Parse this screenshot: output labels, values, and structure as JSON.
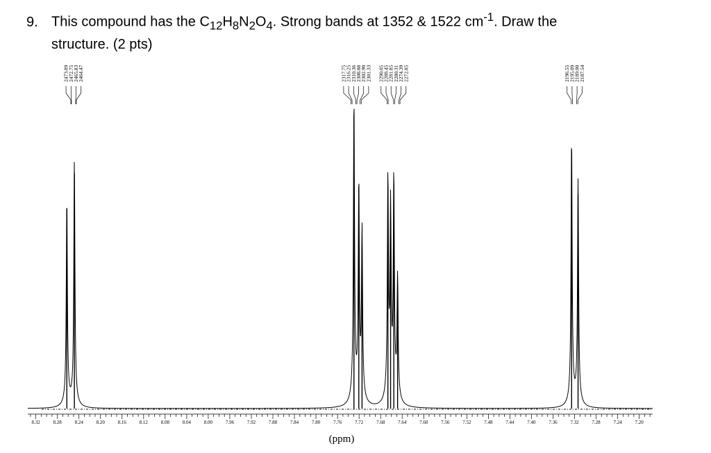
{
  "question": {
    "number": "9.",
    "text_part1": "This compound has the C",
    "c_sub": "12",
    "h_text": "H",
    "h_sub": "8",
    "n_text": "N",
    "n_sub": "2",
    "o_text": "O",
    "o_sub": "4",
    "text_part2": ". Strong bands at 1352 & 1522 cm",
    "unit_sup": "-1",
    "text_part3": ". Draw the",
    "line2": "structure. (2 pts)"
  },
  "chart_data": {
    "type": "line",
    "title": "",
    "xlabel": "(ppm)",
    "ylabel": "",
    "xlim": [
      8.335,
      7.175
    ],
    "ylim": [
      0,
      1
    ],
    "x_reversed": true,
    "grid": false,
    "tick_labels": [
      "8.32",
      "8.28",
      "8.24",
      "8.20",
      "8.16",
      "8.12",
      "8.08",
      "8.04",
      "8.00",
      "7.96",
      "7.92",
      "7.88",
      "7.84",
      "7.80",
      "7.76",
      "7.72",
      "7.68",
      "7.64",
      "7.60",
      "7.56",
      "7.52",
      "7.48",
      "7.44",
      "7.40",
      "7.36",
      "7.32",
      "7.28",
      "7.24",
      "7.20"
    ],
    "tick_values": [
      8.32,
      8.28,
      8.24,
      8.2,
      8.16,
      8.12,
      8.08,
      8.04,
      8.0,
      7.96,
      7.92,
      7.88,
      7.84,
      7.8,
      7.76,
      7.72,
      7.68,
      7.64,
      7.6,
      7.56,
      7.52,
      7.48,
      7.44,
      7.4,
      7.36,
      7.32,
      7.28,
      7.24,
      7.2
    ],
    "peak_label_groups": [
      {
        "labels": [
          "2473.89",
          "2472.75",
          "2465.83",
          "2464.47"
        ],
        "positions": [
          8.255,
          8.254,
          8.246,
          8.245
        ]
      },
      {
        "labels": [
          "2317.75",
          "2316.25",
          "2310.36",
          "2308.88",
          "2302.90",
          "2301.33"
        ],
        "positions": [
          7.735,
          7.733,
          7.726,
          7.724,
          7.718,
          7.716
        ]
      },
      {
        "labels": [
          "2290.05",
          "2288.45",
          "2281.85",
          "2280.31",
          "2274.39",
          "2272.85"
        ],
        "positions": [
          7.668,
          7.666,
          7.656,
          7.654,
          7.646,
          7.644
        ]
      },
      {
        "labels": [
          "2196.55",
          "2195.09",
          "2189.00",
          "2187.54"
        ],
        "positions": [
          7.326,
          7.324,
          7.316,
          7.314
        ]
      }
    ],
    "peaks": [
      {
        "x": 8.2625,
        "h": 0.68
      },
      {
        "x": 8.2485,
        "h": 0.8
      },
      {
        "x": 7.7295,
        "h": 1.0
      },
      {
        "x": 7.7205,
        "h": 0.7
      },
      {
        "x": 7.7145,
        "h": 0.55
      },
      {
        "x": 7.6665,
        "h": 0.72
      },
      {
        "x": 7.6615,
        "h": 0.6
      },
      {
        "x": 7.6555,
        "h": 0.72
      },
      {
        "x": 7.6485,
        "h": 0.4
      },
      {
        "x": 7.3255,
        "h": 0.88
      },
      {
        "x": 7.3135,
        "h": 0.73
      }
    ]
  }
}
